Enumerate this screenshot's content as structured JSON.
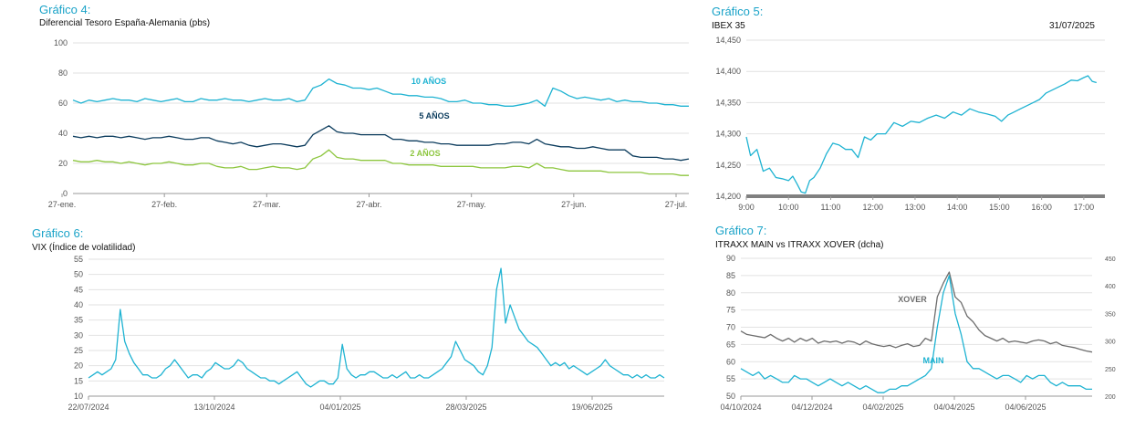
{
  "chart_data": [
    {
      "type": "line",
      "title": "Gráfico 4:",
      "subtitle": "Diferencial Tesoro España-Alemania (pbs)",
      "ylim": [
        0,
        100
      ],
      "yticks": [
        "0",
        "20",
        "40",
        "60",
        "80",
        "100"
      ],
      "xticks": [
        "27-ene.",
        "27-feb.",
        "27-mar.",
        "27-abr.",
        "27-may.",
        "27-jun.",
        "27-jul."
      ],
      "grid": true,
      "series": [
        {
          "name": "10 AÑOS",
          "color": "#1fb3d2",
          "values": [
            62,
            60,
            62,
            61,
            62,
            63,
            62,
            62,
            61,
            63,
            62,
            61,
            62,
            63,
            61,
            61,
            63,
            62,
            62,
            63,
            62,
            62,
            61,
            62,
            63,
            62,
            62,
            63,
            61,
            62,
            70,
            72,
            76,
            73,
            72,
            70,
            70,
            69,
            70,
            68,
            66,
            66,
            65,
            65,
            64,
            64,
            63,
            61,
            61,
            62,
            60,
            60,
            59,
            59,
            58,
            58,
            59,
            60,
            62,
            58,
            70,
            68,
            65,
            63,
            64,
            63,
            62,
            63,
            61,
            62,
            61,
            61,
            60,
            60,
            59,
            59,
            58,
            58
          ]
        },
        {
          "name": "5 AÑOS",
          "color": "#0d3d5e",
          "values": [
            38,
            37,
            38,
            37,
            38,
            38,
            37,
            38,
            37,
            36,
            37,
            37,
            38,
            37,
            36,
            36,
            37,
            37,
            35,
            34,
            33,
            34,
            32,
            31,
            32,
            33,
            33,
            32,
            31,
            32,
            39,
            42,
            45,
            41,
            40,
            40,
            39,
            39,
            39,
            39,
            36,
            36,
            35,
            35,
            34,
            34,
            33,
            33,
            32,
            32,
            32,
            32,
            32,
            33,
            33,
            34,
            34,
            33,
            36,
            33,
            32,
            31,
            31,
            30,
            30,
            31,
            30,
            29,
            29,
            29,
            25,
            24,
            24,
            24,
            23,
            23,
            22,
            23
          ]
        },
        {
          "name": "2 AÑOS",
          "color": "#8dc63f",
          "values": [
            22,
            21,
            21,
            22,
            21,
            21,
            20,
            21,
            20,
            19,
            20,
            20,
            21,
            20,
            19,
            19,
            20,
            20,
            18,
            17,
            17,
            18,
            16,
            16,
            17,
            18,
            17,
            17,
            16,
            17,
            23,
            25,
            29,
            24,
            23,
            23,
            22,
            22,
            22,
            22,
            20,
            20,
            19,
            19,
            19,
            19,
            18,
            18,
            18,
            18,
            18,
            17,
            17,
            17,
            17,
            18,
            18,
            17,
            20,
            17,
            17,
            16,
            15,
            15,
            15,
            15,
            15,
            14,
            14,
            14,
            14,
            14,
            13,
            13,
            13,
            13,
            12,
            12
          ]
        }
      ]
    },
    {
      "type": "line",
      "title": "Gráfico 5:",
      "subtitle": "IBEX 35",
      "date": "31/07/2025",
      "ylim": [
        14200,
        14450
      ],
      "yticks": [
        "14,200",
        "14,250",
        "14,300",
        "14,350",
        "14,400",
        "14,450"
      ],
      "xticks": [
        "9:00",
        "10:00",
        "11:00",
        "12:00",
        "13:00",
        "14:00",
        "15:00",
        "16:00",
        "17:00"
      ],
      "xrange_hours": [
        9,
        17.5
      ],
      "grid": true,
      "series": [
        {
          "name": "",
          "color": "#1fb3d2",
          "x": [
            9.0,
            9.1,
            9.25,
            9.4,
            9.55,
            9.7,
            9.85,
            10.0,
            10.1,
            10.2,
            10.3,
            10.4,
            10.5,
            10.6,
            10.75,
            10.9,
            11.05,
            11.2,
            11.35,
            11.5,
            11.65,
            11.8,
            11.95,
            12.1,
            12.3,
            12.5,
            12.7,
            12.9,
            13.1,
            13.3,
            13.5,
            13.7,
            13.9,
            14.1,
            14.3,
            14.5,
            14.7,
            14.9,
            15.05,
            15.2,
            15.35,
            15.5,
            15.65,
            15.8,
            15.95,
            16.1,
            16.25,
            16.4,
            16.55,
            16.7,
            16.85,
            17.0,
            17.1,
            17.2,
            17.3
          ],
          "values": [
            14295,
            14265,
            14275,
            14240,
            14245,
            14230,
            14228,
            14225,
            14232,
            14220,
            14207,
            14205,
            14225,
            14230,
            14245,
            14268,
            14285,
            14282,
            14275,
            14275,
            14262,
            14295,
            14290,
            14300,
            14300,
            14318,
            14312,
            14320,
            14318,
            14325,
            14330,
            14325,
            14335,
            14330,
            14340,
            14335,
            14332,
            14328,
            14320,
            14330,
            14335,
            14340,
            14345,
            14350,
            14355,
            14365,
            14370,
            14375,
            14380,
            14386,
            14385,
            14390,
            14393,
            14384,
            14382
          ]
        }
      ]
    },
    {
      "type": "line",
      "title": "Gráfico 6:",
      "subtitle": "VIX (Índice de volatilidad)",
      "ylim": [
        10,
        55
      ],
      "yticks": [
        "10",
        "15",
        "20",
        "25",
        "30",
        "35",
        "40",
        "45",
        "50",
        "55"
      ],
      "xticks": [
        "22/07/2024",
        "13/10/2024",
        "04/01/2025",
        "28/03/2025",
        "19/06/2025"
      ],
      "grid": true,
      "series": [
        {
          "name": "",
          "color": "#1fb3d2",
          "values": [
            16,
            17,
            18,
            17,
            18,
            19,
            22,
            38.5,
            28,
            24,
            21,
            19,
            17,
            17,
            16,
            16,
            17,
            19,
            20,
            22,
            20,
            18,
            16,
            17,
            17,
            16,
            18,
            19,
            21,
            20,
            19,
            19,
            20,
            22,
            21,
            19,
            18,
            17,
            16,
            16,
            15,
            15,
            14,
            15,
            16,
            17,
            18,
            16,
            14,
            13,
            14,
            15,
            15,
            14,
            14,
            16,
            27,
            19,
            17,
            16,
            17,
            17,
            18,
            18,
            17,
            16,
            16,
            17,
            16,
            17,
            18,
            16,
            16,
            17,
            16,
            16,
            17,
            18,
            19,
            21,
            23,
            28,
            25,
            22,
            21,
            20,
            18,
            17,
            20,
            26,
            45,
            52,
            34,
            40,
            36,
            32,
            30,
            28,
            27,
            26,
            24,
            22,
            20,
            21,
            20,
            21,
            19,
            20,
            19,
            18,
            17,
            18,
            19,
            20,
            22,
            20,
            19,
            18,
            17,
            17,
            16,
            17,
            16,
            17,
            16,
            16,
            17,
            16
          ]
        }
      ]
    },
    {
      "type": "line",
      "title": "Gráfico 7:",
      "subtitle": "ITRAXX MAIN vs ITRAXX XOVER (dcha)",
      "ylim": [
        50,
        90
      ],
      "y2lim": [
        200,
        450
      ],
      "yticks": [
        "50",
        "55",
        "60",
        "65",
        "70",
        "75",
        "80",
        "85",
        "90"
      ],
      "y2ticks": [
        "200",
        "250",
        "300",
        "350",
        "400",
        "450"
      ],
      "xticks": [
        "04/10/2024",
        "04/12/2024",
        "04/02/2025",
        "04/04/2025",
        "04/06/2025"
      ],
      "grid": true,
      "series": [
        {
          "name": "XOVER",
          "color": "#6d6d6d",
          "axis": "right",
          "values": [
            318,
            312,
            310,
            308,
            306,
            312,
            305,
            300,
            305,
            298,
            305,
            300,
            305,
            296,
            300,
            298,
            300,
            296,
            300,
            298,
            293,
            300,
            295,
            292,
            290,
            292,
            288,
            292,
            295,
            290,
            292,
            305,
            300,
            380,
            405,
            425,
            380,
            370,
            345,
            335,
            320,
            310,
            305,
            300,
            305,
            298,
            300,
            298,
            296,
            300,
            302,
            300,
            295,
            298,
            292,
            290,
            288,
            285,
            282,
            280
          ]
        },
        {
          "name": "MAIN",
          "color": "#1fb3d2",
          "axis": "left",
          "values": [
            58,
            57,
            56,
            57,
            55,
            56,
            55,
            54,
            54,
            56,
            55,
            55,
            54,
            53,
            54,
            55,
            54,
            53,
            54,
            53,
            52,
            53,
            52,
            51,
            51,
            52,
            52,
            53,
            53,
            54,
            55,
            56,
            58,
            70,
            80,
            85,
            74,
            68,
            60,
            58,
            58,
            57,
            56,
            55,
            56,
            56,
            55,
            54,
            56,
            55,
            56,
            56,
            54,
            53,
            54,
            53,
            53,
            53,
            52,
            52
          ]
        }
      ]
    }
  ]
}
